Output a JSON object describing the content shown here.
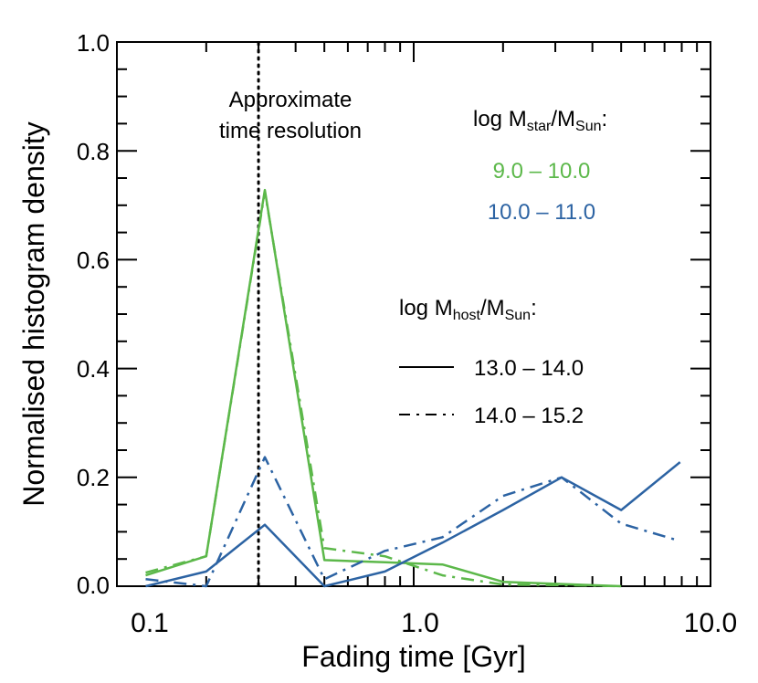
{
  "colors": {
    "green": "#5cb84a",
    "blue": "#2c63a3",
    "axis": "#000000"
  },
  "chart_data": {
    "type": "line",
    "xlabel": "Fading time [Gyr]",
    "ylabel": "Normalised histogram density",
    "xscale": "log",
    "xlim": [
      0.1,
      10.0
    ],
    "ylim": [
      0.0,
      1.0
    ],
    "x_tick_labels": [
      "0.1",
      "1.0",
      "10.0"
    ],
    "y_tick_labels": [
      "0.0",
      "0.2",
      "0.4",
      "0.6",
      "0.8",
      "1.0"
    ],
    "grid": false,
    "reference_line": {
      "x": 0.3,
      "style": "dotted",
      "label_line1": "Approximate",
      "label_line2": "time resolution"
    },
    "legend_mstar": {
      "title_base": "log M",
      "title_sub1": "star",
      "title_mid": "/M",
      "title_sub2": "Sun",
      "title_end": ":",
      "entries": [
        {
          "label": "9.0 – 10.0",
          "color": "green"
        },
        {
          "label": "10.0 – 11.0",
          "color": "blue"
        }
      ]
    },
    "legend_mhost": {
      "title_base": "log M",
      "title_sub1": "host",
      "title_mid": "/M",
      "title_sub2": "Sun",
      "title_end": ":",
      "entries": [
        {
          "label": "13.0 – 14.0",
          "style": "solid"
        },
        {
          "label": "14.0 – 15.2",
          "style": "dashdot"
        }
      ]
    },
    "series": [
      {
        "color": "green",
        "style": "solid",
        "x": [
          0.125,
          0.2,
          0.315,
          0.5,
          0.8,
          1.25,
          2.0,
          3.15,
          5.0
        ],
        "y": [
          0.02,
          0.055,
          0.728,
          0.048,
          0.044,
          0.04,
          0.008,
          0.004,
          0.0
        ]
      },
      {
        "color": "green",
        "style": "dashdot",
        "x": [
          0.125,
          0.2,
          0.315,
          0.5,
          0.8,
          1.25,
          2.0,
          3.15,
          5.0
        ],
        "y": [
          0.025,
          0.055,
          0.725,
          0.07,
          0.055,
          0.02,
          0.003,
          0.002,
          0.0
        ]
      },
      {
        "color": "blue",
        "style": "solid",
        "x": [
          0.125,
          0.2,
          0.315,
          0.5,
          0.8,
          1.25,
          2.0,
          3.15,
          5.0,
          7.9
        ],
        "y": [
          0.0,
          0.027,
          0.113,
          0.0,
          0.027,
          0.08,
          0.14,
          0.2,
          0.14,
          0.228
        ]
      },
      {
        "color": "blue",
        "style": "dashdot",
        "x": [
          0.125,
          0.2,
          0.315,
          0.5,
          0.8,
          1.25,
          2.0,
          3.15,
          5.0,
          7.9
        ],
        "y": [
          0.013,
          0.0,
          0.237,
          0.013,
          0.065,
          0.09,
          0.166,
          0.2,
          0.115,
          0.083
        ]
      }
    ]
  }
}
